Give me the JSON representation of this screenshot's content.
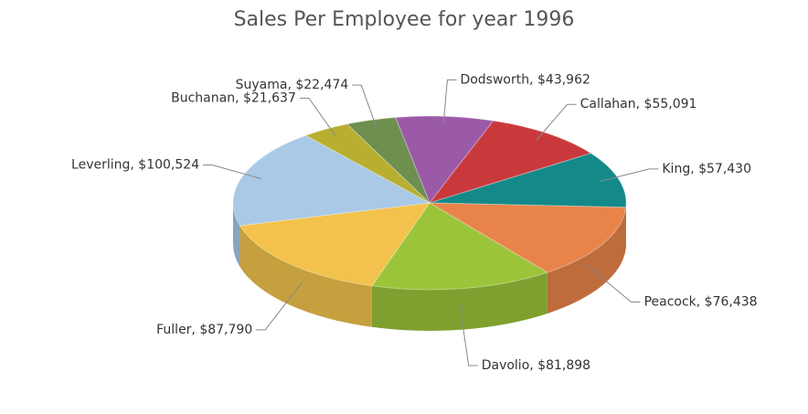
{
  "chart_data": {
    "type": "pie",
    "title": "Sales Per Employee for year 1996",
    "values": [
      43962,
      55091,
      57430,
      76438,
      81898,
      87790,
      100524,
      21637,
      22474
    ],
    "value_labels": [
      "Dodsworth, $43,962",
      "Callahan, $55,091",
      "King, $57,430",
      "Peacock, $76,438",
      "Davolio, $81,898",
      "Fuller, $87,790",
      "Leverling, $100,524",
      "Buchanan, $21,637",
      "Suyama, $22,474"
    ],
    "colors": [
      "#9b5aa8",
      "#c9393c",
      "#14898a",
      "#e8844a",
      "#9cc43a",
      "#f2c24c",
      "#a9c9e6",
      "#b8ae2f",
      "#6e8f50"
    ]
  }
}
